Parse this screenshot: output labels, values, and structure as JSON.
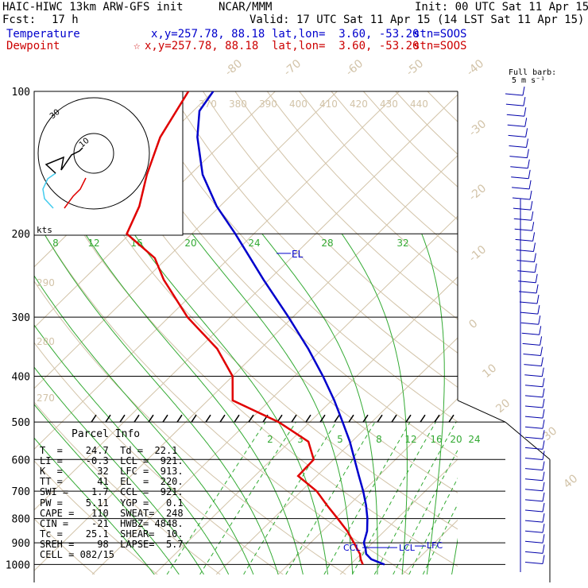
{
  "header": {
    "model": "HAIC-HIWC 13km ARW-GFS init",
    "org": "NCAR/MMM",
    "init": "Init: 00 UTC Sat 11 Apr 15",
    "fcst_label": "Fcst:",
    "fcst_value": "17 h",
    "valid": "Valid: 17 UTC Sat 11 Apr 15 (14 LST Sat 11 Apr 15)",
    "temp_row": {
      "label": "Temperature",
      "xy": "x,y=257.78, 88.18",
      "latlon": "lat,lon=  3.60, -53.20",
      "stn": "stn=SOOS"
    },
    "dew_row": {
      "label": "Dewpoint",
      "marker": "☆",
      "xy": "x,y=257.78, 88.18",
      "latlon": "lat,lon=  3.60, -53.20",
      "stn": "stn=SOOS"
    },
    "barb_legend_1": "Full barb:",
    "barb_legend_2": "5 m s⁻¹"
  },
  "colors": {
    "temperature": "#0000cc",
    "dewpoint": "#e00000",
    "isotherm": "#d2c3a8",
    "mixing_ratio": "#33aa33",
    "adiabat": "#33aa33",
    "hodo_low": "#44ccee",
    "hodo_mid": "#e00000",
    "barb": "#0000aa"
  },
  "chart_data": {
    "type": "line",
    "title": "",
    "ylabel": "",
    "y_scale": "log-pressure",
    "pressure_ticks": [
      100,
      200,
      300,
      400,
      500,
      600,
      700,
      800,
      900,
      1000
    ],
    "isotherm_labels": [
      -80,
      -70,
      -60,
      -50,
      -40,
      -30,
      -20,
      -10,
      0,
      10,
      20,
      30,
      40
    ],
    "theta_labels": [
      370,
      380,
      390,
      400,
      410,
      420,
      430,
      440
    ],
    "theta_left_labels": [
      290,
      280,
      270
    ],
    "mixing_ratio_labels_top": [
      8,
      12,
      16,
      20,
      24,
      28,
      32
    ],
    "mixing_ratio_labels_mid": [
      2,
      3,
      5,
      8,
      12,
      16,
      20,
      24
    ],
    "series": [
      {
        "name": "Temperature",
        "color": "#0000cc",
        "points": [
          [
            1000,
            25.5
          ],
          [
            975,
            22.5
          ],
          [
            950,
            20.8
          ],
          [
            925,
            19.8
          ],
          [
            900,
            18.6
          ],
          [
            850,
            17.2
          ],
          [
            800,
            15.2
          ],
          [
            750,
            12.8
          ],
          [
            700,
            10.0
          ],
          [
            650,
            6.8
          ],
          [
            600,
            3.4
          ],
          [
            550,
            -0.3
          ],
          [
            500,
            -4.7
          ],
          [
            450,
            -9.6
          ],
          [
            400,
            -15.4
          ],
          [
            350,
            -22.3
          ],
          [
            300,
            -30.7
          ],
          [
            250,
            -40.9
          ],
          [
            225,
            -46.6
          ],
          [
            200,
            -53.0
          ],
          [
            175,
            -60.5
          ],
          [
            150,
            -68.0
          ],
          [
            125,
            -75.0
          ],
          [
            110,
            -79.0
          ],
          [
            100,
            -80.0
          ]
        ]
      },
      {
        "name": "Dewpoint",
        "color": "#e00000",
        "points": [
          [
            1000,
            22.0
          ],
          [
            975,
            20.8
          ],
          [
            950,
            19.8
          ],
          [
            925,
            18.4
          ],
          [
            900,
            17.0
          ],
          [
            850,
            14.0
          ],
          [
            800,
            10.4
          ],
          [
            750,
            6.5
          ],
          [
            700,
            2.5
          ],
          [
            650,
            -3.0
          ],
          [
            600,
            -3.2
          ],
          [
            550,
            -7.0
          ],
          [
            500,
            -15.0
          ],
          [
            450,
            -26.0
          ],
          [
            400,
            -30.0
          ],
          [
            350,
            -37.0
          ],
          [
            300,
            -47.0
          ],
          [
            250,
            -57.0
          ],
          [
            225,
            -62.0
          ],
          [
            210,
            -67.0
          ],
          [
            200,
            -70.5
          ],
          [
            175,
            -73.0
          ],
          [
            150,
            -77.0
          ],
          [
            125,
            -81.0
          ],
          [
            100,
            -84.0
          ]
        ]
      }
    ],
    "annotations": {
      "el": "EL",
      "el_p": 220,
      "ccl": "CCL",
      "ccl_p": 921,
      "lcl": "LCL",
      "lcl_p": 921,
      "lfc": "LFC",
      "lfc_p": 913,
      "hodo_units": "kts",
      "hodo_ring_label": "10",
      "hodo_ring_label_outer": "30"
    }
  },
  "parcel_info": {
    "title": "Parcel Info",
    "rows": [
      "T  =    24.7  Td =  22.1",
      "LI =    -0.3  LCL =  921.",
      "K  =      32  LFC =  913.",
      "TT =      41  EL  =  220.",
      "SWI =    1.7  CCL =  921.",
      "PW =    5.11  YGP =   0.1",
      "CAPE =   110  SWEAT=  248",
      "CIN =    -21  HWBZ= 4848.",
      "Tc =    25.1  SHEAR=  10.",
      "SREH =    98  LAPSE=  5.7",
      "CELL = 082/15"
    ]
  }
}
